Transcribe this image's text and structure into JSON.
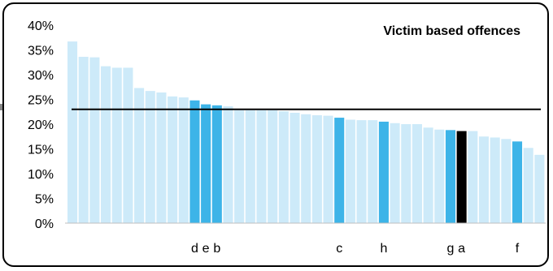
{
  "chart_data": {
    "type": "bar",
    "title": "Victim based offences",
    "xlabel": "",
    "ylabel": "",
    "ylim": [
      0,
      40
    ],
    "yticks": [
      "0%",
      "5%",
      "10%",
      "15%",
      "20%",
      "25%",
      "30%",
      "35%",
      "40%"
    ],
    "grid": false,
    "reference_line": 23,
    "values": [
      36.7,
      33.6,
      33.5,
      31.7,
      31.4,
      31.4,
      27.3,
      26.7,
      26.4,
      25.6,
      25.4,
      24.8,
      24.0,
      23.8,
      23.6,
      22.8,
      22.8,
      22.8,
      22.8,
      22.6,
      22.3,
      22.0,
      21.8,
      21.7,
      21.3,
      20.9,
      20.8,
      20.8,
      20.5,
      20.2,
      20.0,
      20.0,
      19.3,
      18.9,
      18.8,
      18.6,
      18.6,
      17.5,
      17.3,
      17.0,
      16.5,
      15.2,
      13.8
    ],
    "bar_labels": [
      "",
      "",
      "",
      "",
      "",
      "",
      "",
      "",
      "",
      "",
      "",
      "d",
      "e",
      "b",
      "",
      "",
      "",
      "",
      "",
      "",
      "",
      "",
      "",
      "",
      "c",
      "",
      "",
      "",
      "h",
      "",
      "",
      "",
      "",
      "",
      "g",
      "a",
      "",
      "",
      "",
      "",
      "f",
      "",
      ""
    ],
    "colors": {
      "default": "#cdeaf9",
      "highlight": "#3db4e8",
      "selected": "#000000",
      "reference": "#000000"
    },
    "highlight_indices": [
      11,
      12,
      13,
      24,
      28,
      34,
      40
    ],
    "selected_indices": [
      35
    ]
  }
}
